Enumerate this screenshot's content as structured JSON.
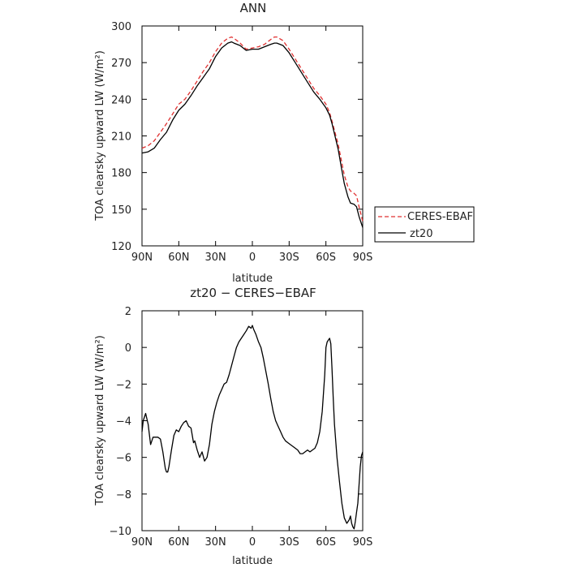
{
  "chart_data": [
    {
      "type": "line",
      "title": "ANN",
      "xlabel": "latitude",
      "ylabel": "TOA clearsky upward LW (W/m²)",
      "xlim": [
        90,
        -90
      ],
      "ylim": [
        120,
        300
      ],
      "xticks": [
        90,
        60,
        30,
        0,
        -30,
        -60,
        -90
      ],
      "xtick_labels": [
        "90N",
        "60N",
        "30N",
        "0",
        "30S",
        "60S",
        "90S"
      ],
      "yticks": [
        120,
        150,
        180,
        210,
        240,
        270,
        300
      ],
      "ytick_labels": [
        "120",
        "150",
        "180",
        "210",
        "240",
        "270",
        "300"
      ],
      "legend_position": "right",
      "series": [
        {
          "name": "CERES-EBAF",
          "color": "#e03030",
          "dash": "dashed",
          "x": [
            90,
            85,
            80,
            75,
            70,
            65,
            60,
            55,
            50,
            45,
            40,
            35,
            30,
            25,
            20,
            17,
            15,
            10,
            5,
            0,
            -5,
            -10,
            -15,
            -18,
            -20,
            -25,
            -30,
            -35,
            -40,
            -45,
            -50,
            -55,
            -60,
            -63,
            -65,
            -70,
            -73,
            -75,
            -78,
            -80,
            -83,
            -85,
            -87,
            -90
          ],
          "y": [
            200,
            202,
            206,
            213,
            220,
            228,
            236,
            240,
            247,
            255,
            263,
            270,
            279,
            286,
            290,
            291,
            290,
            286,
            281,
            282,
            283,
            285,
            289,
            291,
            291,
            288,
            281,
            273,
            265,
            257,
            249,
            243,
            236,
            229,
            222,
            203,
            188,
            178,
            168,
            165,
            163,
            161,
            152,
            140
          ]
        },
        {
          "name": "zt20",
          "color": "#000000",
          "dash": "solid",
          "x": [
            90,
            85,
            80,
            75,
            70,
            65,
            60,
            55,
            50,
            45,
            40,
            35,
            30,
            25,
            20,
            17,
            15,
            10,
            5,
            0,
            -5,
            -10,
            -15,
            -18,
            -20,
            -25,
            -30,
            -35,
            -40,
            -45,
            -50,
            -55,
            -60,
            -63,
            -65,
            -70,
            -73,
            -75,
            -78,
            -80,
            -83,
            -85,
            -87,
            -90
          ],
          "y": [
            196,
            197,
            200,
            207,
            213,
            223,
            231,
            236,
            243,
            251,
            258,
            265,
            275,
            282,
            286,
            287,
            286,
            284,
            280,
            281,
            281,
            283,
            285,
            286,
            286,
            284,
            278,
            270,
            262,
            254,
            246,
            240,
            233,
            227,
            220,
            199,
            182,
            171,
            160,
            155,
            154,
            152,
            144,
            135
          ]
        }
      ]
    },
    {
      "type": "line",
      "title": "zt20 − CERES−EBAF",
      "xlabel": "latitude",
      "ylabel": "TOA clearsky upward LW (W/m²)",
      "xlim": [
        90,
        -90
      ],
      "ylim": [
        -10,
        2
      ],
      "xticks": [
        90,
        60,
        30,
        0,
        -30,
        -60,
        -90
      ],
      "xtick_labels": [
        "90N",
        "60N",
        "30N",
        "0",
        "30S",
        "60S",
        "90S"
      ],
      "yticks": [
        -10,
        -8,
        -6,
        -4,
        -2,
        0,
        2
      ],
      "ytick_labels": [
        "−10",
        "−8",
        "−6",
        "−4",
        "−2",
        "0",
        "2"
      ],
      "series": [
        {
          "color": "#000000",
          "dash": "solid",
          "x": [
            90,
            89,
            87,
            85,
            83,
            81,
            79,
            77,
            75,
            73,
            71,
            70,
            69,
            68,
            66,
            64,
            62,
            60,
            58,
            56,
            54,
            52,
            50,
            48,
            47,
            45,
            43,
            41,
            39,
            37,
            35,
            33,
            31,
            29,
            27,
            25,
            23,
            21,
            19,
            17,
            15,
            13,
            11,
            9,
            7,
            5,
            3,
            1,
            0,
            -1,
            -3,
            -5,
            -7,
            -9,
            -11,
            -13,
            -15,
            -17,
            -19,
            -21,
            -23,
            -25,
            -27,
            -29,
            -31,
            -33,
            -35,
            -37,
            -39,
            -41,
            -43,
            -45,
            -47,
            -49,
            -51,
            -53,
            -55,
            -57,
            -59,
            -60,
            -61,
            -62,
            -63,
            -64,
            -65,
            -66,
            -67,
            -69,
            -71,
            -73,
            -75,
            -77,
            -79,
            -80,
            -81,
            -82,
            -83,
            -84,
            -85,
            -86,
            -87,
            -88,
            -89,
            -90
          ],
          "y": [
            -4.6,
            -4.0,
            -3.6,
            -4.2,
            -5.3,
            -4.9,
            -4.9,
            -4.9,
            -5.0,
            -5.7,
            -6.6,
            -6.8,
            -6.8,
            -6.5,
            -5.6,
            -4.8,
            -4.5,
            -4.6,
            -4.3,
            -4.1,
            -4.0,
            -4.3,
            -4.4,
            -5.2,
            -5.1,
            -5.6,
            -6.0,
            -5.7,
            -6.2,
            -6.0,
            -5.3,
            -4.2,
            -3.5,
            -3.0,
            -2.6,
            -2.3,
            -2.0,
            -1.9,
            -1.5,
            -1.0,
            -0.5,
            0.0,
            0.3,
            0.5,
            0.7,
            0.9,
            1.15,
            1.05,
            1.2,
            1.0,
            0.7,
            0.3,
            0.0,
            -0.6,
            -1.3,
            -2.0,
            -2.8,
            -3.5,
            -4.0,
            -4.3,
            -4.6,
            -4.9,
            -5.1,
            -5.2,
            -5.3,
            -5.4,
            -5.5,
            -5.6,
            -5.8,
            -5.8,
            -5.7,
            -5.6,
            -5.7,
            -5.6,
            -5.5,
            -5.2,
            -4.6,
            -3.5,
            -1.5,
            0.0,
            0.3,
            0.4,
            0.5,
            0.2,
            -1.2,
            -2.8,
            -4.2,
            -6.0,
            -7.3,
            -8.5,
            -9.3,
            -9.6,
            -9.4,
            -9.2,
            -9.6,
            -9.8,
            -9.9,
            -9.5,
            -9.0,
            -8.5,
            -7.5,
            -6.5,
            -5.9,
            -5.7
          ]
        }
      ]
    }
  ]
}
